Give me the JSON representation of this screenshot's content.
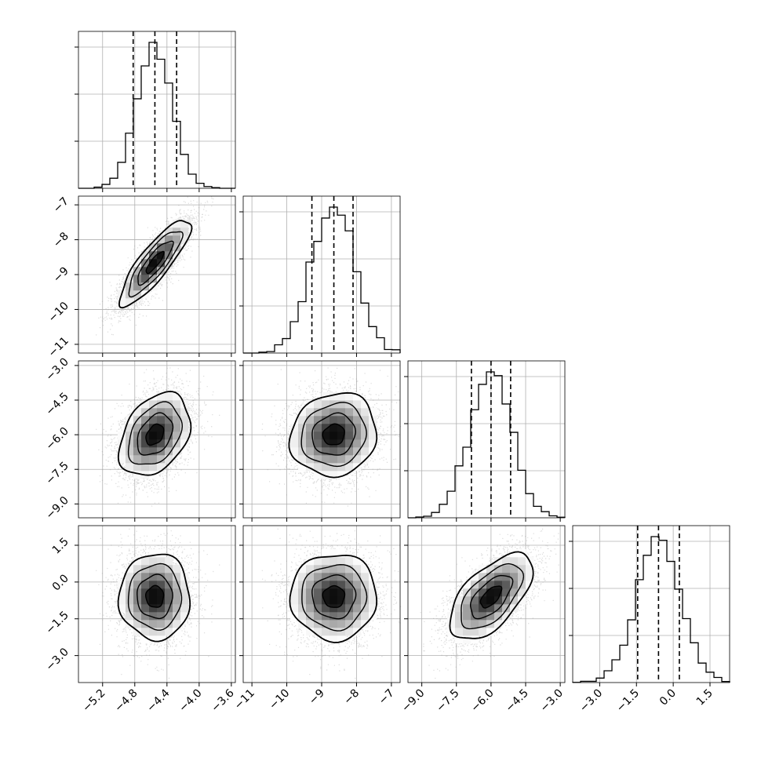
{
  "chart_data": {
    "type": "corner",
    "title": "",
    "parameters": [
      {
        "label": "",
        "center": -4.55,
        "sigma": 0.22,
        "range": [
          -5.5,
          -3.55
        ],
        "ticks": [
          -5.2,
          -4.8,
          -4.4,
          -4.0,
          -3.6
        ],
        "tick_labels": [
          "−5.2",
          "−4.8",
          "−4.4",
          "−4.0",
          "−3.6"
        ],
        "quantiles": [
          -4.82,
          -4.55,
          -4.28
        ]
      },
      {
        "label": "",
        "center": -8.65,
        "sigma": 0.62,
        "range": [
          -11.25,
          -6.75
        ],
        "ticks": [
          -11,
          -10,
          -9,
          -8,
          -7
        ],
        "tick_labels": [
          "−11",
          "−10",
          "−9",
          "−8",
          "−7"
        ],
        "quantiles": [
          -9.28,
          -8.65,
          -8.1
        ]
      },
      {
        "label": "",
        "center": -6.0,
        "sigma": 0.9,
        "range": [
          -9.6,
          -2.8
        ],
        "ticks": [
          -9.0,
          -7.5,
          -6.0,
          -4.5,
          -3.0
        ],
        "tick_labels": [
          "−9.0",
          "−7.5",
          "−6.0",
          "−4.5",
          "−3.0"
        ],
        "quantiles": [
          -6.85,
          -6.0,
          -5.15
        ]
      },
      {
        "label": "",
        "center": -0.6,
        "sigma": 0.88,
        "range": [
          -4.1,
          2.3
        ],
        "ticks": [
          -3.0,
          -1.5,
          0.0,
          1.5
        ],
        "tick_labels": [
          "−3.0",
          "−1.5",
          "0.0",
          "1.5"
        ],
        "quantiles": [
          -1.45,
          -0.6,
          0.25
        ]
      }
    ],
    "correlations": [
      [
        1.0,
        0.85,
        0.35,
        0.0
      ],
      [
        0.85,
        1.0,
        0.1,
        0.0
      ],
      [
        0.35,
        0.1,
        1.0,
        0.6
      ],
      [
        0.0,
        0.0,
        0.6,
        1.0
      ]
    ],
    "histogram_bins": 20,
    "contour_levels": [
      0.118,
      0.393,
      0.675,
      0.864
    ],
    "grid": true,
    "quantile_line_style": "dashed",
    "colors": {
      "line": "#000000",
      "points": "#9a9a9a",
      "grid": "#b0b0b0",
      "density": "#000000"
    }
  }
}
